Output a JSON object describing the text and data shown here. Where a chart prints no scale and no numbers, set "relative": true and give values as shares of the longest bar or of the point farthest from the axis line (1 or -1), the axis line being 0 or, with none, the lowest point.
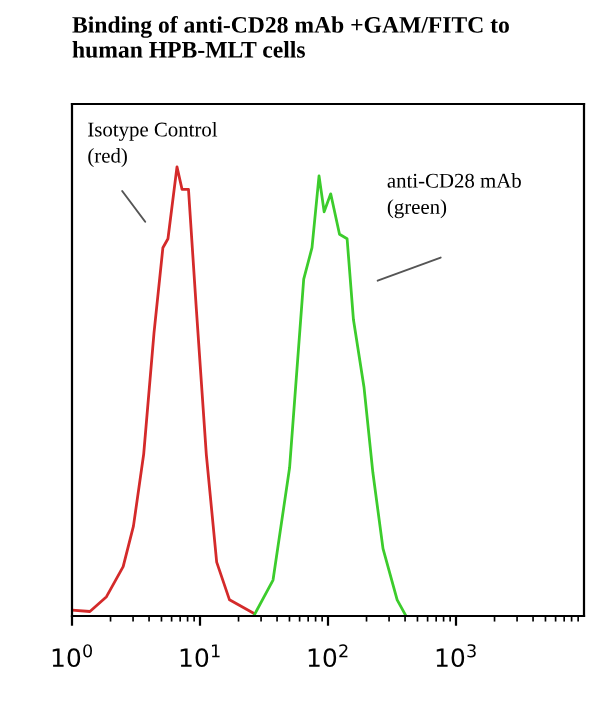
{
  "chart_data": {
    "type": "line",
    "title": "Binding of anti-CD28 mAb +GAM/FITC to\nhuman HPB-MLT cells",
    "relative": true,
    "log": "x",
    "grid": false,
    "legend": false,
    "marker": "none",
    "line_style": "solid",
    "xlim": [
      1,
      10000
    ],
    "xticks": [
      {
        "value": 1,
        "label": "10$^{0}$"
      },
      {
        "value": 10,
        "label": "10$^{1}$"
      },
      {
        "value": 100,
        "label": "10$^{2}$"
      },
      {
        "value": 1000,
        "label": "10$^{3}$"
      }
    ],
    "series": [
      {
        "color": "#d42a2a",
        "x": [
          1.0,
          1.38,
          1.86,
          2.51,
          3.02,
          3.63,
          4.37,
          5.13,
          5.62,
          6.61,
          7.24,
          8.13,
          9.33,
          11.2,
          13.5,
          17.0,
          26.3
        ],
        "values": [
          0.013,
          0.01,
          0.043,
          0.11,
          0.2,
          0.36,
          0.63,
          0.82,
          0.84,
          1.0,
          0.95,
          0.95,
          0.69,
          0.36,
          0.12,
          0.036,
          0.006
        ]
      },
      {
        "color": "#3ccc2c",
        "x": [
          26.3,
          37.2,
          50.1,
          64.6,
          75,
          85.1,
          93.3,
          105,
          123,
          141,
          158,
          191,
          224,
          269,
          347,
          407
        ],
        "values": [
          0,
          0.08,
          0.33,
          0.75,
          0.82,
          0.98,
          0.9,
          0.94,
          0.85,
          0.84,
          0.66,
          0.51,
          0.32,
          0.15,
          0.036,
          0
        ]
      }
    ],
    "annotations": [
      "Isotype Control\n(red)",
      "anti-CD28 mAb\n(green)"
    ]
  }
}
